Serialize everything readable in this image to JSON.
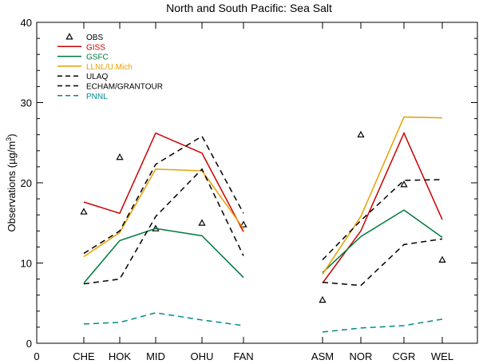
{
  "chart_data": {
    "type": "line",
    "title": "North and South Pacific: Sea Salt",
    "xlabel": "",
    "ylabel": "Observations (µg/m³)",
    "ylabel_main": "Observations (µg/m",
    "ylabel_sup": "3",
    "ylabel_close": ")",
    "ylim": [
      0,
      40
    ],
    "yticks": [
      0,
      10,
      20,
      30,
      40
    ],
    "x_zero_label": "0",
    "categories": [
      "CHE",
      "HOK",
      "MID",
      "OHU",
      "FAN",
      "ASM",
      "NOR",
      "CGR",
      "WEL"
    ],
    "groups": [
      [
        0,
        1,
        2,
        3,
        4
      ],
      [
        5,
        6,
        7,
        8
      ]
    ],
    "grid": false,
    "legend_position": "top-left",
    "series": [
      {
        "name": "OBS",
        "style": "marker",
        "color": "#000000",
        "values": [
          16.4,
          23.2,
          14.3,
          15.0,
          14.8,
          5.4,
          26.0,
          19.8,
          10.4
        ]
      },
      {
        "name": "GISS",
        "style": "solid",
        "color": "#cc0000",
        "values": [
          17.6,
          16.2,
          26.2,
          23.7,
          13.9,
          7.5,
          14.0,
          26.2,
          15.4
        ]
      },
      {
        "name": "GSFC",
        "style": "solid",
        "color": "#007a3d",
        "values": [
          7.5,
          12.8,
          14.3,
          13.4,
          8.2,
          8.8,
          13.3,
          16.6,
          13.2
        ]
      },
      {
        "name": "LLNL/U.Mich",
        "style": "solid",
        "color": "#e8a000",
        "values": [
          10.8,
          13.8,
          21.7,
          21.5,
          14.3,
          8.6,
          15.8,
          28.2,
          28.1
        ]
      },
      {
        "name": "ULAQ",
        "style": "dashed",
        "color": "#000000",
        "values": [
          7.4,
          8.0,
          15.8,
          21.7,
          10.9,
          7.6,
          7.2,
          12.3,
          13.0
        ]
      },
      {
        "name": "ECHAM/GRANTOUR",
        "style": "dashed",
        "color": "#000000",
        "values": [
          11.2,
          14.0,
          22.3,
          25.8,
          16.2,
          10.4,
          15.3,
          20.3,
          20.4
        ]
      },
      {
        "name": "PNNL",
        "style": "dashed",
        "color": "#008b8b",
        "values": [
          2.4,
          2.6,
          3.8,
          2.9,
          2.2,
          1.4,
          1.9,
          2.2,
          3.0
        ]
      }
    ]
  }
}
